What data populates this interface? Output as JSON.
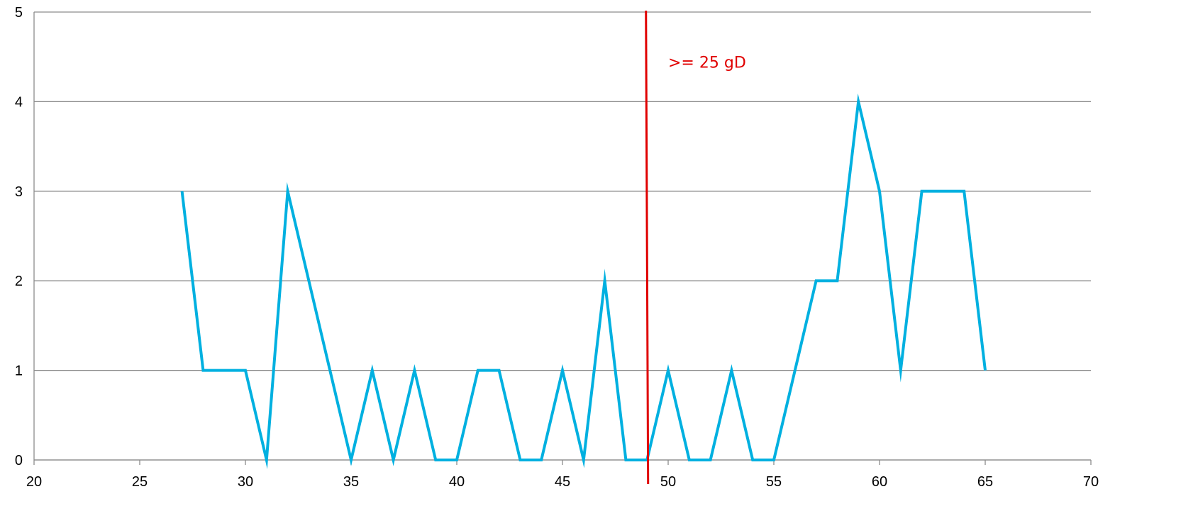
{
  "chart_data": {
    "type": "line",
    "title": "",
    "xlabel": "",
    "ylabel": "",
    "xlim": [
      20,
      70
    ],
    "ylim": [
      0,
      5
    ],
    "x_ticks": [
      20,
      25,
      30,
      35,
      40,
      45,
      50,
      55,
      60,
      65,
      70
    ],
    "y_ticks": [
      0,
      1,
      2,
      3,
      4,
      5
    ],
    "grid": "horizontal",
    "legend": "none",
    "series": [
      {
        "color": "#00b0e0",
        "points": [
          [
            27,
            3
          ],
          [
            28,
            1
          ],
          [
            29,
            1
          ],
          [
            30,
            1
          ],
          [
            31,
            0
          ],
          [
            32,
            3
          ],
          [
            33,
            2
          ],
          [
            34,
            1
          ],
          [
            35,
            0
          ],
          [
            36,
            1
          ],
          [
            37,
            0
          ],
          [
            38,
            1
          ],
          [
            39,
            0
          ],
          [
            40,
            0
          ],
          [
            41,
            1
          ],
          [
            42,
            1
          ],
          [
            43,
            0
          ],
          [
            44,
            0
          ],
          [
            45,
            1
          ],
          [
            46,
            0
          ],
          [
            47,
            2
          ],
          [
            48,
            0
          ],
          [
            49,
            0
          ],
          [
            50,
            1
          ],
          [
            51,
            0
          ],
          [
            52,
            0
          ],
          [
            53,
            1
          ],
          [
            54,
            0
          ],
          [
            55,
            0
          ],
          [
            56,
            1
          ],
          [
            57,
            2
          ],
          [
            58,
            2
          ],
          [
            59,
            4
          ],
          [
            60,
            3
          ],
          [
            61,
            1
          ],
          [
            62,
            3
          ],
          [
            63,
            3
          ],
          [
            64,
            3
          ],
          [
            65,
            1
          ]
        ]
      }
    ],
    "reference_line": {
      "x": 48.95,
      "color": "#e00000",
      "label": ">= 25 gD",
      "label_x": 50,
      "label_y": 4.38
    }
  }
}
